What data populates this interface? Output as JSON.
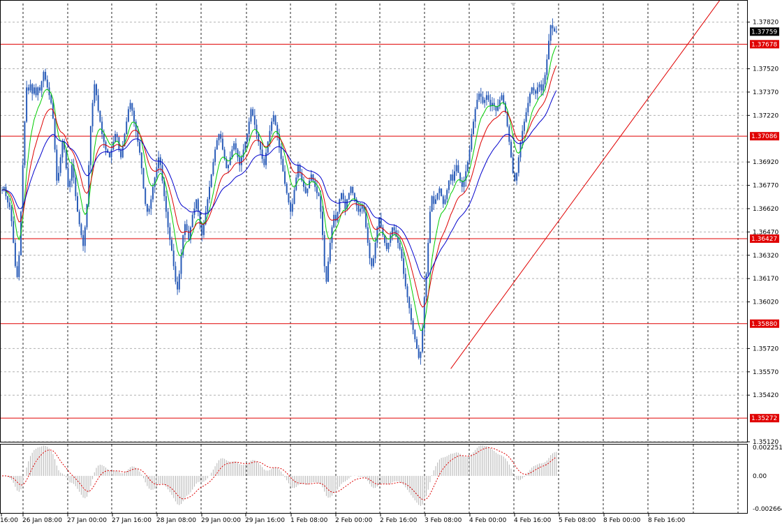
{
  "chart_data": {
    "type": "candlestick",
    "symbol_pair": "",
    "grid": true,
    "price_axis": {
      "ticks": [
        "1.37820",
        "1.37520",
        "1.37370",
        "1.37220",
        "1.36920",
        "1.36770",
        "1.36620",
        "1.36470",
        "1.36320",
        "1.36170",
        "1.36020",
        "1.35720",
        "1.35570",
        "1.35420",
        "1.35120"
      ],
      "range": [
        1.3512,
        1.3794
      ]
    },
    "time_axis": {
      "ticks": [
        "16:00",
        "26 Jan 08:00",
        "27 Jan 00:00",
        "27 Jan 16:00",
        "28 Jan 08:00",
        "29 Jan 00:00",
        "29 Jan 16:00",
        "1 Feb 08:00",
        "2 Feb 00:00",
        "2 Feb 16:00",
        "3 Feb 08:00",
        "4 Feb 00:00",
        "4 Feb 16:00",
        "5 Feb 08:00",
        "8 Feb 00:00",
        "8 Feb 16:00"
      ]
    },
    "current_price": "1.37759",
    "horizontal_levels": [
      {
        "label": "1.37678",
        "value": 1.37678,
        "color": "#e00000"
      },
      {
        "label": "1.37086",
        "value": 1.37086,
        "color": "#e00000"
      },
      {
        "label": "1.36427",
        "value": 1.36427,
        "color": "#e00000"
      },
      {
        "label": "1.35880",
        "value": 1.3588,
        "color": "#e00000"
      },
      {
        "label": "1.35272",
        "value": 1.35272,
        "color": "#e00000"
      }
    ],
    "trendline": {
      "color": "#e00000",
      "from": {
        "bar": 238,
        "price": 1.3559
      },
      "to": {
        "bar": 368,
        "price": 1.3775
      }
    },
    "price_bars": [
      1.3674,
      1.3676,
      1.367,
      1.3666,
      1.3663,
      1.3654,
      1.364,
      1.3625,
      1.3618,
      1.3632,
      1.366,
      1.369,
      1.3718,
      1.374,
      1.3738,
      1.3742,
      1.3736,
      1.374,
      1.3735,
      1.374,
      1.3738,
      1.3744,
      1.375,
      1.3745,
      1.374,
      1.3735,
      1.373,
      1.372,
      1.37,
      1.368,
      1.3685,
      1.3695,
      1.3705,
      1.37,
      1.3688,
      1.3676,
      1.368,
      1.369,
      1.3682,
      1.367,
      1.366,
      1.3652,
      1.3645,
      1.3638,
      1.365,
      1.3665,
      1.369,
      1.3715,
      1.373,
      1.3742,
      1.3735,
      1.3725,
      1.3718,
      1.371,
      1.3705,
      1.37,
      1.3698,
      1.3695,
      1.37,
      1.3705,
      1.371,
      1.3708,
      1.37,
      1.3695,
      1.3702,
      1.371,
      1.3718,
      1.3726,
      1.373,
      1.3725,
      1.3718,
      1.3712,
      1.3705,
      1.3698,
      1.3688,
      1.3675,
      1.3665,
      1.366,
      1.3662,
      1.3668,
      1.3676,
      1.3682,
      1.3688,
      1.3695,
      1.369,
      1.368,
      1.367,
      1.366,
      1.365,
      1.3642,
      1.3635,
      1.3625,
      1.3615,
      1.361,
      1.362,
      1.3632,
      1.3645,
      1.3652,
      1.3648,
      1.3642,
      1.365,
      1.3658,
      1.3662,
      1.3668,
      1.366,
      1.3652,
      1.3645,
      1.3652,
      1.366,
      1.3668,
      1.3676,
      1.3684,
      1.3692,
      1.37,
      1.3706,
      1.371,
      1.3707,
      1.37,
      1.3694,
      1.3688,
      1.369,
      1.3695,
      1.37,
      1.3704,
      1.37,
      1.3695,
      1.369,
      1.3695,
      1.37,
      1.3705,
      1.371,
      1.3718,
      1.3726,
      1.3722,
      1.3716,
      1.371,
      1.3705,
      1.37,
      1.3694,
      1.369,
      1.3698,
      1.3705,
      1.3712,
      1.3718,
      1.3722,
      1.3716,
      1.371,
      1.3702,
      1.3694,
      1.3686,
      1.3678,
      1.3672,
      1.3666,
      1.366,
      1.3665,
      1.3674,
      1.3682,
      1.369,
      1.3685,
      1.368,
      1.3676,
      1.3672,
      1.3675,
      1.368,
      1.3684,
      1.368,
      1.3676,
      1.3672,
      1.367,
      1.366,
      1.3645,
      1.3625,
      1.3615,
      1.3628,
      1.364,
      1.365,
      1.3658,
      1.3654,
      1.366,
      1.3668,
      1.3672,
      1.3668,
      1.3662,
      1.3668,
      1.3672,
      1.3676,
      1.3672,
      1.3668,
      1.3664,
      1.366,
      1.3662,
      1.3664,
      1.366,
      1.365,
      1.364,
      1.363,
      1.3625,
      1.363,
      1.364,
      1.365,
      1.3656,
      1.365,
      1.3645,
      1.364,
      1.3636,
      1.364,
      1.3645,
      1.365,
      1.3648,
      1.3644,
      1.364,
      1.3636,
      1.363,
      1.362,
      1.3612,
      1.3605,
      1.3598,
      1.359,
      1.3584,
      1.3578,
      1.3572,
      1.3566,
      1.357,
      1.3585,
      1.3605,
      1.362,
      1.364,
      1.366,
      1.367,
      1.3665,
      1.3668,
      1.3672,
      1.3675,
      1.367,
      1.3665,
      1.3668,
      1.3674,
      1.368,
      1.3684,
      1.368,
      1.3686,
      1.369,
      1.3685,
      1.368,
      1.3676,
      1.368,
      1.3686,
      1.3692,
      1.37,
      1.371,
      1.3718,
      1.3726,
      1.3732,
      1.3736,
      1.3734,
      1.373,
      1.3732,
      1.3735,
      1.3732,
      1.3728,
      1.373,
      1.3728,
      1.3725,
      1.3728,
      1.3732,
      1.3735,
      1.373,
      1.3724,
      1.3715,
      1.3705,
      1.3695,
      1.3685,
      1.368,
      1.3685,
      1.3695,
      1.3705,
      1.3712,
      1.3718,
      1.3724,
      1.373,
      1.3736,
      1.374,
      1.3738,
      1.3736,
      1.374,
      1.3742,
      1.3738,
      1.3742,
      1.3748,
      1.3758,
      1.377,
      1.378,
      1.3778,
      1.3776,
      1.3776
    ],
    "moving_averages": [
      {
        "color": "#00cc00",
        "period": 8
      },
      {
        "color": "#dd0000",
        "period": 16
      },
      {
        "color": "#0000cc",
        "period": 32
      }
    ],
    "oscillator": {
      "ticks": [
        "0.002251",
        "0.00",
        "-0.002664"
      ],
      "range": [
        -0.002664,
        0.002251
      ],
      "histogram_color": "#b4b4b4",
      "signal_color": "#dd0000"
    }
  }
}
